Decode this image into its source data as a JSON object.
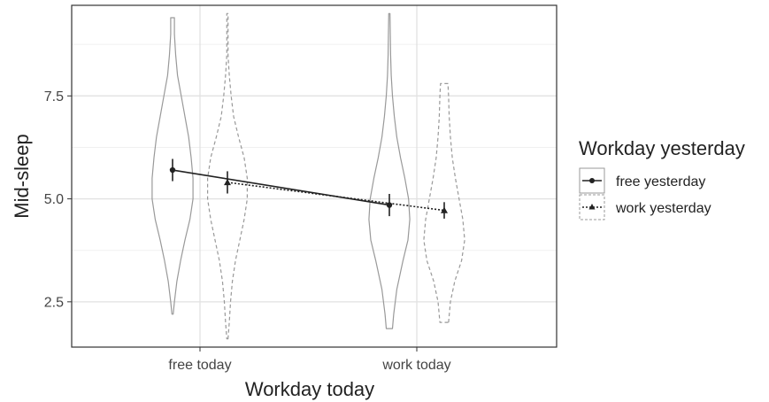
{
  "chart_data": {
    "type": "violin",
    "xlabel": "Workday today",
    "ylabel": "Mid-sleep",
    "categories": [
      "free today",
      "work today"
    ],
    "ylim": [
      1.4,
      9.7
    ],
    "yticks": [
      2.5,
      5.0,
      7.5
    ],
    "ytick_labels": [
      "2.5",
      "5.0",
      "7.5"
    ],
    "grid": true,
    "legend": {
      "title": "Workday yesterday",
      "placement": "right",
      "entries": [
        "free yesterday",
        "work yesterday"
      ]
    },
    "series": [
      {
        "name": "free yesterday",
        "marker": "circle",
        "line_style": "solid",
        "violin_style": "solid",
        "color": "#222222",
        "violin_color": "#999999",
        "means": [
          5.7,
          4.85
        ],
        "errors": [
          0.27,
          0.27
        ],
        "violins": [
          {
            "profile": [
              [
                2.2,
                0.01
              ],
              [
                2.5,
                0.03
              ],
              [
                3.0,
                0.07
              ],
              [
                3.5,
                0.13
              ],
              [
                4.0,
                0.2
              ],
              [
                4.5,
                0.28
              ],
              [
                5.0,
                0.33
              ],
              [
                5.5,
                0.33
              ],
              [
                6.0,
                0.3
              ],
              [
                6.5,
                0.26
              ],
              [
                7.0,
                0.2
              ],
              [
                7.5,
                0.14
              ],
              [
                8.0,
                0.08
              ],
              [
                8.5,
                0.05
              ],
              [
                9.0,
                0.03
              ],
              [
                9.4,
                0.03
              ]
            ]
          },
          {
            "profile": [
              [
                1.85,
                0.05
              ],
              [
                2.2,
                0.07
              ],
              [
                2.8,
                0.12
              ],
              [
                3.5,
                0.22
              ],
              [
                4.0,
                0.3
              ],
              [
                4.5,
                0.33
              ],
              [
                5.0,
                0.31
              ],
              [
                5.5,
                0.25
              ],
              [
                6.0,
                0.18
              ],
              [
                6.5,
                0.12
              ],
              [
                7.0,
                0.08
              ],
              [
                7.5,
                0.05
              ],
              [
                8.0,
                0.03
              ],
              [
                8.5,
                0.02
              ],
              [
                9.5,
                0.01
              ]
            ]
          }
        ]
      },
      {
        "name": "work yesterday",
        "marker": "triangle",
        "line_style": "dotted",
        "violin_style": "dashed",
        "color": "#222222",
        "violin_color": "#999999",
        "means": [
          5.4,
          4.72
        ],
        "errors": [
          0.27,
          0.2
        ],
        "violins": [
          {
            "profile": [
              [
                1.6,
                0.01
              ],
              [
                2.0,
                0.03
              ],
              [
                2.5,
                0.05
              ],
              [
                3.0,
                0.08
              ],
              [
                3.5,
                0.13
              ],
              [
                4.0,
                0.2
              ],
              [
                4.5,
                0.27
              ],
              [
                5.0,
                0.32
              ],
              [
                5.5,
                0.32
              ],
              [
                6.0,
                0.27
              ],
              [
                6.5,
                0.18
              ],
              [
                7.0,
                0.1
              ],
              [
                7.5,
                0.06
              ],
              [
                8.0,
                0.03
              ],
              [
                8.5,
                0.01
              ],
              [
                9.5,
                0.01
              ]
            ]
          },
          {
            "profile": [
              [
                2.0,
                0.07
              ],
              [
                2.5,
                0.1
              ],
              [
                3.0,
                0.17
              ],
              [
                3.5,
                0.28
              ],
              [
                4.0,
                0.33
              ],
              [
                4.5,
                0.3
              ],
              [
                5.0,
                0.24
              ],
              [
                5.5,
                0.18
              ],
              [
                6.0,
                0.13
              ],
              [
                6.5,
                0.1
              ],
              [
                7.0,
                0.08
              ],
              [
                7.5,
                0.07
              ],
              [
                7.8,
                0.06
              ]
            ]
          }
        ]
      }
    ]
  }
}
